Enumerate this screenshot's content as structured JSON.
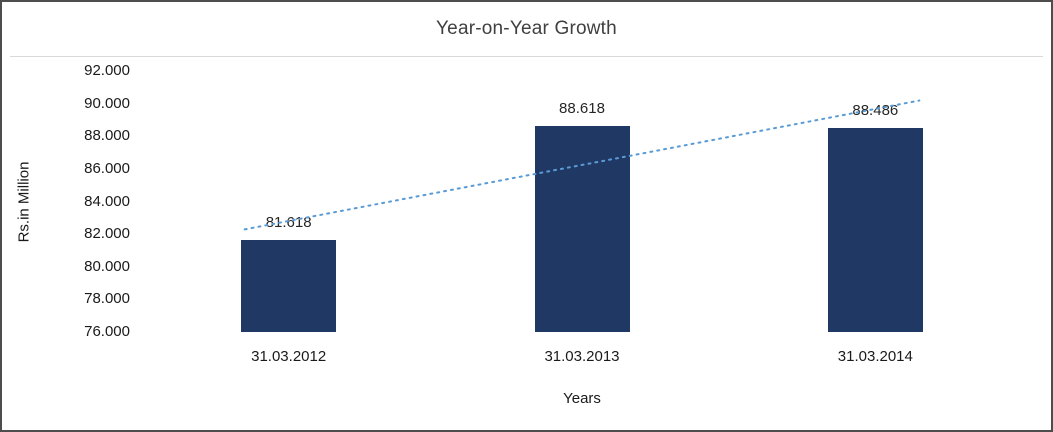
{
  "chart": {
    "title": "Year-on-Year Growth",
    "ylabel": "Rs.in Million",
    "xlabel": "Years"
  },
  "chart_data": {
    "type": "bar",
    "title": "Year-on-Year Growth",
    "xlabel": "Years",
    "ylabel": "Rs.in Million",
    "categories": [
      "31.03.2012",
      "31.03.2013",
      "31.03.2014"
    ],
    "values": [
      81.618,
      88.618,
      88.486
    ],
    "data_labels": [
      "81.618",
      "88.618",
      "88.486"
    ],
    "ylim": [
      76,
      92
    ],
    "ytick_step": 2,
    "yticks": [
      "92.000",
      "90.000",
      "88.000",
      "86.000",
      "84.000",
      "82.000",
      "80.000",
      "78.000",
      "76.000"
    ],
    "grid": false,
    "legend": "none",
    "trendline": true,
    "colors": {
      "bar": "#1F3864",
      "trendline": "#5B9BD5",
      "title": "#404040",
      "frame_border": "#4d4d4d"
    }
  }
}
